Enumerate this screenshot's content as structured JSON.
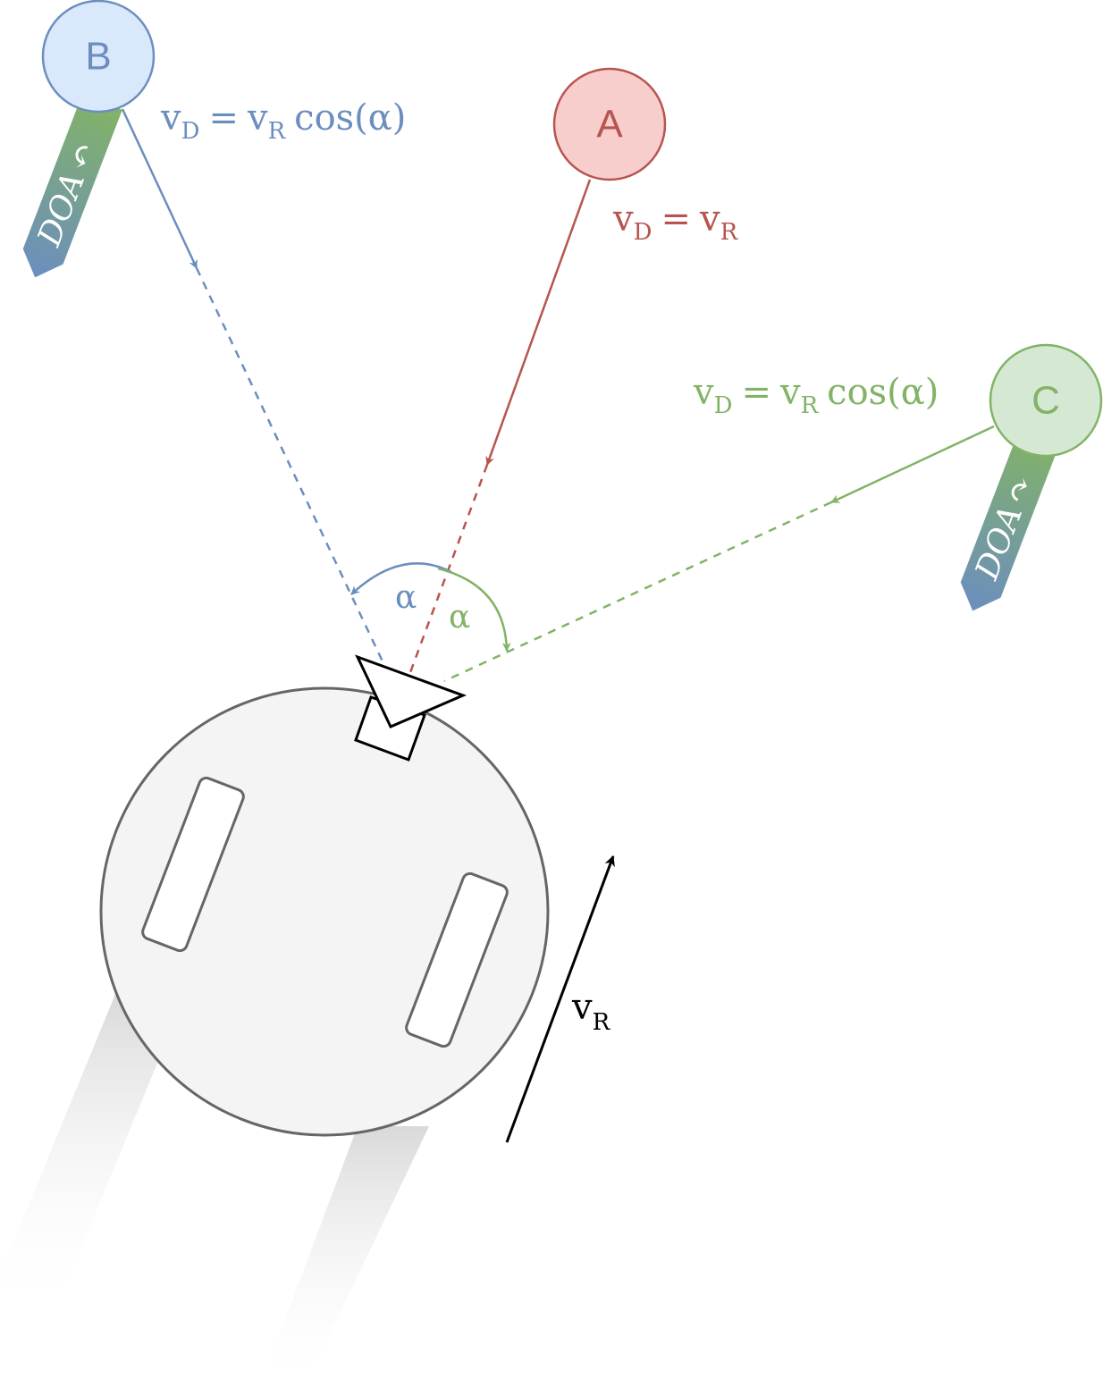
{
  "nodes": [
    {
      "id": "A",
      "label": "A",
      "fill": "#f8cecc",
      "stroke": "#b85450"
    },
    {
      "id": "B",
      "label": "B",
      "fill": "#dae8fc",
      "stroke": "#6c8ebf"
    },
    {
      "id": "C",
      "label": "C",
      "fill": "#d5e8d4",
      "stroke": "#82b366"
    }
  ],
  "equations": {
    "a": {
      "v": "v",
      "sub_d": "D",
      "eq": "=",
      "v2": "v",
      "sub_r": "R",
      "color": "#b85450"
    },
    "b": {
      "v": "v",
      "sub_d": "D",
      "eq": "=",
      "v2": "v",
      "sub_r": "R",
      "tail": "cos(α)",
      "color": "#6c8ebf"
    },
    "c": {
      "v": "v",
      "sub_d": "D",
      "eq": "=",
      "v2": "v",
      "sub_r": "R",
      "tail": "cos(α)",
      "color": "#82b366"
    }
  },
  "angles": {
    "blue": "α",
    "green": "α"
  },
  "doa": {
    "b_label": "DOA",
    "b_symbol": "↶",
    "c_label": "DOA",
    "c_symbol": "↷"
  },
  "robot": {
    "velocity_label": "v",
    "velocity_sub": "R"
  }
}
